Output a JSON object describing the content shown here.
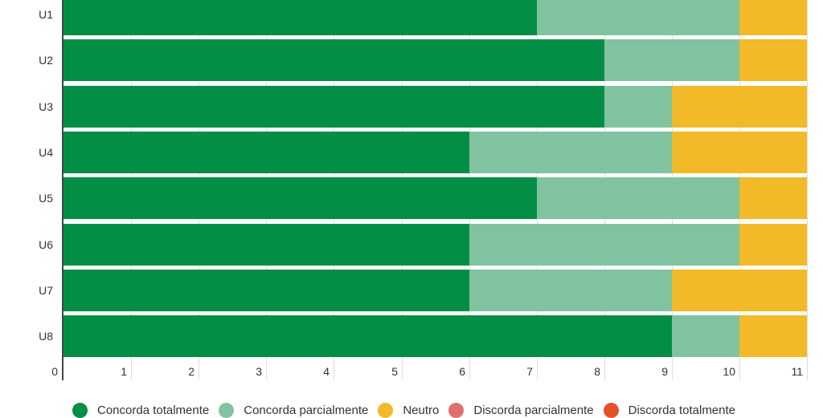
{
  "chart_data": {
    "type": "bar",
    "orientation": "horizontal",
    "stacked": true,
    "title": "",
    "xlabel": "",
    "ylabel": "",
    "categories": [
      "U1",
      "U2",
      "U3",
      "U4",
      "U5",
      "U6",
      "U7",
      "U8"
    ],
    "series": [
      {
        "name": "Concorda totalmente",
        "color": "#038E46",
        "values": [
          7,
          8,
          8,
          6,
          7,
          6,
          6,
          9
        ]
      },
      {
        "name": "Concorda parcialmente",
        "color": "#81C3A0",
        "values": [
          3,
          2,
          1,
          3,
          3,
          4,
          3,
          1
        ]
      },
      {
        "name": "Neutro",
        "color": "#F2BA29",
        "values": [
          1,
          1,
          2,
          2,
          1,
          1,
          2,
          1
        ]
      },
      {
        "name": "Discorda parcialmente",
        "color": "#E06E6E",
        "values": [
          0,
          0,
          0,
          0,
          0,
          0,
          0,
          0
        ]
      },
      {
        "name": "Discorda totalmente",
        "color": "#E5512B",
        "values": [
          0,
          0,
          0,
          0,
          0,
          0,
          0,
          0
        ]
      }
    ],
    "xlim": [
      0,
      11
    ],
    "xticks": [
      "0",
      "1",
      "2",
      "3",
      "4",
      "5",
      "6",
      "7",
      "8",
      "9",
      "10",
      "11"
    ],
    "grid": true,
    "legend_position": "bottom"
  }
}
